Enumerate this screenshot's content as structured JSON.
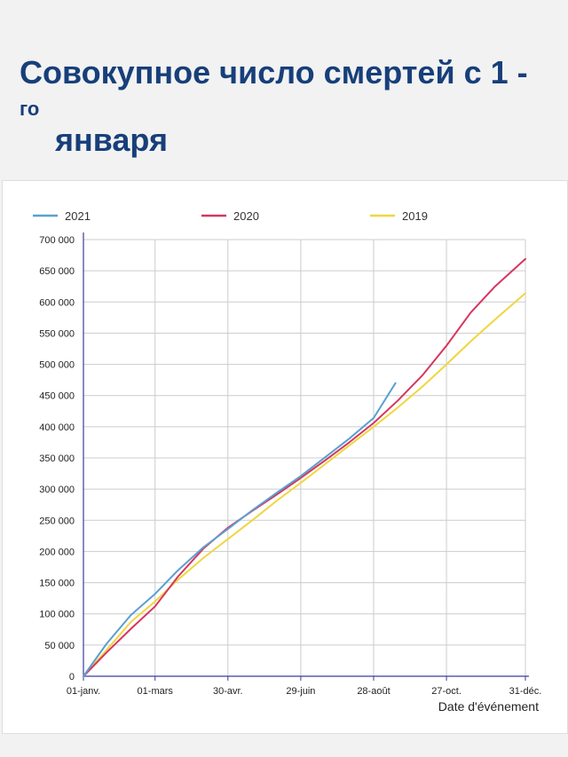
{
  "title": {
    "line1": "Совокупное число смертей с 1 -",
    "sup": "го",
    "line2": "января"
  },
  "colors": {
    "2021": "#5aa0d0",
    "2020": "#d6365f",
    "2019": "#f0d640",
    "axis": "#3a3aa0",
    "grid": "#cccccc"
  },
  "chart_data": {
    "type": "line",
    "title": "Совокупное число смертей с 1 -го января",
    "xlabel": "Date d'événement",
    "ylabel": "",
    "ylim": [
      0,
      700000
    ],
    "y_ticks": [
      "0",
      "50 000",
      "100 000",
      "150 000",
      "200 000",
      "250 000",
      "300 000",
      "350 000",
      "400 000",
      "450 000",
      "500 000",
      "550 000",
      "600 000",
      "650 000",
      "700 000"
    ],
    "x_ticks": [
      "01-janv.",
      "01-mars",
      "30-avr.",
      "29-juin",
      "28-août",
      "27-oct.",
      "31-déc."
    ],
    "x_tick_dates": [
      "2021-01-01",
      "2021-03-01",
      "2021-04-30",
      "2021-06-29",
      "2021-08-28",
      "2021-10-27",
      "2021-12-31"
    ],
    "legend_position": "top",
    "grid": true,
    "series": [
      {
        "name": "2021",
        "color": "#5aa0d0",
        "x": [
          "2021-01-01",
          "2021-01-20",
          "2021-02-09",
          "2021-03-01",
          "2021-03-20",
          "2021-04-10",
          "2021-04-30",
          "2021-05-20",
          "2021-06-09",
          "2021-06-29",
          "2021-07-19",
          "2021-08-08",
          "2021-08-28",
          "2021-09-15"
        ],
        "values": [
          0,
          52000,
          98000,
          132000,
          170000,
          207000,
          236000,
          266000,
          294000,
          321000,
          351000,
          381000,
          414000,
          470000
        ]
      },
      {
        "name": "2020",
        "color": "#d6365f",
        "x": [
          "2021-01-01",
          "2021-01-20",
          "2021-02-09",
          "2021-03-01",
          "2021-03-20",
          "2021-04-10",
          "2021-04-30",
          "2021-05-20",
          "2021-06-09",
          "2021-06-29",
          "2021-07-19",
          "2021-08-08",
          "2021-08-28",
          "2021-09-17",
          "2021-10-07",
          "2021-10-27",
          "2021-11-16",
          "2021-12-06",
          "2021-12-31"
        ],
        "values": [
          0,
          38000,
          76000,
          112000,
          160000,
          205000,
          238000,
          265000,
          291000,
          318000,
          346000,
          375000,
          406000,
          442000,
          482000,
          530000,
          583000,
          625000,
          669000
        ]
      },
      {
        "name": "2019",
        "color": "#f0d640",
        "x": [
          "2021-01-01",
          "2021-01-20",
          "2021-02-09",
          "2021-03-01",
          "2021-03-20",
          "2021-04-10",
          "2021-04-30",
          "2021-05-20",
          "2021-06-09",
          "2021-06-29",
          "2021-07-19",
          "2021-08-08",
          "2021-08-28",
          "2021-09-17",
          "2021-10-07",
          "2021-10-27",
          "2021-11-16",
          "2021-12-06",
          "2021-12-31"
        ],
        "values": [
          0,
          42000,
          87000,
          120000,
          155000,
          190000,
          220000,
          250000,
          281000,
          310000,
          340000,
          370000,
          400000,
          431000,
          464000,
          500000,
          537000,
          572000,
          614000
        ]
      }
    ]
  }
}
